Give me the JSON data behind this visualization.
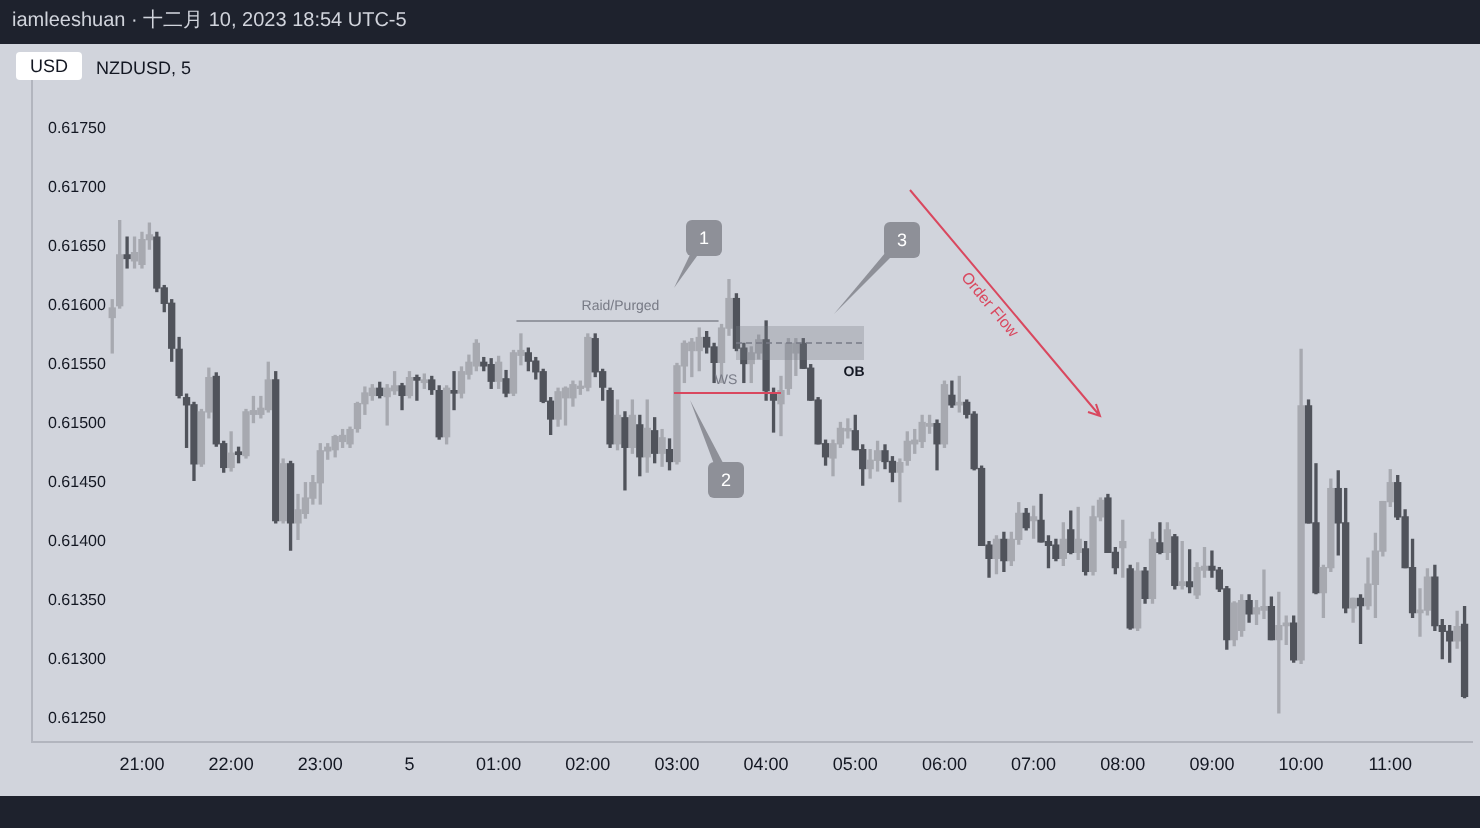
{
  "chart_data": {
    "type": "candlestick",
    "title": "iamleeshuan · 十二月 10, 2023 18:54 UTC-5",
    "subtitle": "NZDUSD, 5",
    "ylabel": "USD",
    "x": [
      "2023-12-04T20:40",
      "2023-12-04T20:45",
      "2023-12-04T20:50",
      "2023-12-04T20:55",
      "2023-12-04T21:00",
      "2023-12-04T21:05",
      "2023-12-04T21:10",
      "2023-12-04T21:15",
      "2023-12-04T21:20",
      "2023-12-04T21:25",
      "2023-12-04T21:30",
      "2023-12-04T21:35",
      "2023-12-04T21:40",
      "2023-12-04T21:45",
      "2023-12-04T21:50",
      "2023-12-04T21:55",
      "2023-12-04T22:00",
      "2023-12-04T22:05",
      "2023-12-04T22:10",
      "2023-12-04T22:15",
      "2023-12-04T22:20",
      "2023-12-04T22:25",
      "2023-12-04T22:30",
      "2023-12-04T22:35",
      "2023-12-04T22:40",
      "2023-12-04T22:45",
      "2023-12-04T22:50",
      "2023-12-04T22:55",
      "2023-12-04T23:00",
      "2023-12-04T23:05",
      "2023-12-04T23:10",
      "2023-12-04T23:15",
      "2023-12-04T23:20",
      "2023-12-04T23:25",
      "2023-12-04T23:30",
      "2023-12-04T23:35",
      "2023-12-04T23:40",
      "2023-12-04T23:45",
      "2023-12-04T23:50",
      "2023-12-04T23:55",
      "2023-12-05T00:00",
      "2023-12-05T00:05",
      "2023-12-05T00:10",
      "2023-12-05T00:15",
      "2023-12-05T00:20",
      "2023-12-05T00:25",
      "2023-12-05T00:30",
      "2023-12-05T00:35",
      "2023-12-05T00:40",
      "2023-12-05T00:45",
      "2023-12-05T00:50",
      "2023-12-05T00:55",
      "2023-12-05T01:00",
      "2023-12-05T01:05",
      "2023-12-05T01:10",
      "2023-12-05T01:15",
      "2023-12-05T01:20",
      "2023-12-05T01:25",
      "2023-12-05T01:30",
      "2023-12-05T01:35",
      "2023-12-05T01:40",
      "2023-12-05T01:45",
      "2023-12-05T01:50",
      "2023-12-05T01:55",
      "2023-12-05T02:00",
      "2023-12-05T02:05",
      "2023-12-05T02:10",
      "2023-12-05T02:15",
      "2023-12-05T02:20",
      "2023-12-05T02:25",
      "2023-12-05T02:30",
      "2023-12-05T02:35",
      "2023-12-05T02:40",
      "2023-12-05T02:45",
      "2023-12-05T02:50",
      "2023-12-05T02:55",
      "2023-12-05T03:00",
      "2023-12-05T03:05",
      "2023-12-05T03:10",
      "2023-12-05T03:15",
      "2023-12-05T03:20",
      "2023-12-05T03:25",
      "2023-12-05T03:30",
      "2023-12-05T03:35",
      "2023-12-05T03:40",
      "2023-12-05T03:45",
      "2023-12-05T03:50",
      "2023-12-05T03:55",
      "2023-12-05T04:00",
      "2023-12-05T04:05",
      "2023-12-05T04:10",
      "2023-12-05T04:15",
      "2023-12-05T04:20",
      "2023-12-05T04:25",
      "2023-12-05T04:30",
      "2023-12-05T04:35",
      "2023-12-05T04:40",
      "2023-12-05T04:45",
      "2023-12-05T04:50",
      "2023-12-05T04:55",
      "2023-12-05T05:00",
      "2023-12-05T05:05",
      "2023-12-05T05:10",
      "2023-12-05T05:15",
      "2023-12-05T05:20",
      "2023-12-05T05:25",
      "2023-12-05T05:30",
      "2023-12-05T05:35",
      "2023-12-05T05:40",
      "2023-12-05T05:45",
      "2023-12-05T05:50",
      "2023-12-05T05:55",
      "2023-12-05T06:00",
      "2023-12-05T06:05",
      "2023-12-05T06:10",
      "2023-12-05T06:15",
      "2023-12-05T06:20",
      "2023-12-05T06:25",
      "2023-12-05T06:30",
      "2023-12-05T06:35",
      "2023-12-05T06:40",
      "2023-12-05T06:45",
      "2023-12-05T06:50",
      "2023-12-05T06:55",
      "2023-12-05T07:00",
      "2023-12-05T07:05",
      "2023-12-05T07:10",
      "2023-12-05T07:15",
      "2023-12-05T07:20",
      "2023-12-05T07:25",
      "2023-12-05T07:30",
      "2023-12-05T07:35",
      "2023-12-05T07:40",
      "2023-12-05T07:45",
      "2023-12-05T07:50",
      "2023-12-05T07:55",
      "2023-12-05T08:00",
      "2023-12-05T08:05",
      "2023-12-05T08:10",
      "2023-12-05T08:15",
      "2023-12-05T08:20",
      "2023-12-05T08:25",
      "2023-12-05T08:30",
      "2023-12-05T08:35",
      "2023-12-05T08:40",
      "2023-12-05T08:45",
      "2023-12-05T08:50",
      "2023-12-05T08:55",
      "2023-12-05T09:00",
      "2023-12-05T09:05",
      "2023-12-05T09:10",
      "2023-12-05T09:15",
      "2023-12-05T09:20",
      "2023-12-05T09:25",
      "2023-12-05T09:30",
      "2023-12-05T09:35",
      "2023-12-05T09:40",
      "2023-12-05T09:45",
      "2023-12-05T09:50",
      "2023-12-05T09:55",
      "2023-12-05T10:00",
      "2023-12-05T10:05",
      "2023-12-05T10:10",
      "2023-12-05T10:15",
      "2023-12-05T10:20",
      "2023-12-05T10:25",
      "2023-12-05T10:30",
      "2023-12-05T10:35",
      "2023-12-05T10:40",
      "2023-12-05T10:45",
      "2023-12-05T10:50",
      "2023-12-05T10:55",
      "2023-12-05T11:00",
      "2023-12-05T11:05",
      "2023-12-05T11:10",
      "2023-12-05T11:15",
      "2023-12-05T11:20",
      "2023-12-05T11:25",
      "2023-12-05T11:30",
      "2023-12-05T11:35",
      "2023-12-05T11:40",
      "2023-12-05T11:45",
      "2023-12-05T11:50"
    ],
    "ohlc": [
      [
        0.6159,
        0.61605,
        0.6156,
        0.61598
      ],
      [
        0.616,
        0.61672,
        0.61598,
        0.61643
      ],
      [
        0.61643,
        0.61658,
        0.61632,
        0.6164
      ],
      [
        0.61638,
        0.61658,
        0.61632,
        0.61645
      ],
      [
        0.61635,
        0.61662,
        0.61632,
        0.61656
      ],
      [
        0.61656,
        0.6167,
        0.61648,
        0.6166
      ],
      [
        0.61658,
        0.61662,
        0.61612,
        0.61615
      ],
      [
        0.61615,
        0.61617,
        0.61595,
        0.61602
      ],
      [
        0.61602,
        0.61605,
        0.61553,
        0.61564
      ],
      [
        0.61563,
        0.61573,
        0.61522,
        0.61524
      ],
      [
        0.61522,
        0.61525,
        0.6148,
        0.61516
      ],
      [
        0.61516,
        0.61518,
        0.61452,
        0.61466
      ],
      [
        0.61466,
        0.61512,
        0.61464,
        0.6151
      ],
      [
        0.6151,
        0.61547,
        0.61505,
        0.61539
      ],
      [
        0.6154,
        0.61543,
        0.61481,
        0.61483
      ],
      [
        0.61483,
        0.61485,
        0.61459,
        0.61463
      ],
      [
        0.61463,
        0.61493,
        0.6146,
        0.61475
      ],
      [
        0.61476,
        0.6148,
        0.61467,
        0.61474
      ],
      [
        0.61473,
        0.61512,
        0.61471,
        0.6151
      ],
      [
        0.61508,
        0.61523,
        0.61501,
        0.61511
      ],
      [
        0.61508,
        0.61523,
        0.61505,
        0.61513
      ],
      [
        0.61512,
        0.61552,
        0.6151,
        0.61537
      ],
      [
        0.61537,
        0.61544,
        0.61416,
        0.61418
      ],
      [
        0.61418,
        0.6147,
        0.61416,
        0.61466
      ],
      [
        0.61466,
        0.61468,
        0.61393,
        0.61416
      ],
      [
        0.61416,
        0.6144,
        0.61402,
        0.61427
      ],
      [
        0.61424,
        0.6145,
        0.6142,
        0.61437
      ],
      [
        0.61437,
        0.61456,
        0.61432,
        0.6145
      ],
      [
        0.6145,
        0.61483,
        0.61432,
        0.61477
      ],
      [
        0.61477,
        0.61483,
        0.6147,
        0.6148
      ],
      [
        0.61478,
        0.6149,
        0.61472,
        0.61489
      ],
      [
        0.61485,
        0.61495,
        0.6148,
        0.6149
      ],
      [
        0.61483,
        0.61497,
        0.6148,
        0.61495
      ],
      [
        0.61496,
        0.61518,
        0.61493,
        0.61517
      ],
      [
        0.61517,
        0.61531,
        0.61508,
        0.61526
      ],
      [
        0.61524,
        0.61533,
        0.6152,
        0.6153
      ],
      [
        0.6153,
        0.61535,
        0.61522,
        0.61524
      ],
      [
        0.61523,
        0.61533,
        0.61499,
        0.6153
      ],
      [
        0.61528,
        0.61544,
        0.61525,
        0.61532
      ],
      [
        0.61532,
        0.61534,
        0.61512,
        0.61524
      ],
      [
        0.61524,
        0.61544,
        0.61522,
        0.61539
      ],
      [
        0.61539,
        0.61541,
        0.6152,
        0.61537
      ],
      [
        0.61535,
        0.61542,
        0.6153,
        0.61537
      ],
      [
        0.61537,
        0.6154,
        0.61525,
        0.61529
      ],
      [
        0.61528,
        0.61532,
        0.61487,
        0.61489
      ],
      [
        0.61489,
        0.61532,
        0.61483,
        0.6153
      ],
      [
        0.61528,
        0.61544,
        0.61512,
        0.61526
      ],
      [
        0.61526,
        0.61548,
        0.61522,
        0.61544
      ],
      [
        0.61542,
        0.61558,
        0.61538,
        0.61552
      ],
      [
        0.61549,
        0.61571,
        0.61545,
        0.61568
      ],
      [
        0.61552,
        0.61556,
        0.61545,
        0.61549
      ],
      [
        0.6155,
        0.61555,
        0.6153,
        0.61536
      ],
      [
        0.61536,
        0.61557,
        0.6153,
        0.61552
      ],
      [
        0.61538,
        0.61545,
        0.61523,
        0.61526
      ],
      [
        0.61526,
        0.61562,
        0.61524,
        0.6156
      ],
      [
        0.61558,
        0.61576,
        0.6155,
        0.61562
      ],
      [
        0.6156,
        0.61564,
        0.61545,
        0.61553
      ],
      [
        0.61553,
        0.61556,
        0.61538,
        0.61544
      ],
      [
        0.61544,
        0.61546,
        0.61518,
        0.61519
      ],
      [
        0.61519,
        0.61522,
        0.61491,
        0.61504
      ],
      [
        0.61504,
        0.6153,
        0.61498,
        0.61527
      ],
      [
        0.61522,
        0.61531,
        0.61499,
        0.6153
      ],
      [
        0.61522,
        0.61536,
        0.61515,
        0.61533
      ],
      [
        0.6153,
        0.61536,
        0.61525,
        0.61531
      ],
      [
        0.61531,
        0.61576,
        0.61528,
        0.61573
      ],
      [
        0.61572,
        0.61576,
        0.6154,
        0.61544
      ],
      [
        0.61544,
        0.61546,
        0.6152,
        0.61531
      ],
      [
        0.61528,
        0.6153,
        0.6148,
        0.61483
      ],
      [
        0.61483,
        0.6152,
        0.61478,
        0.61507
      ],
      [
        0.61505,
        0.6151,
        0.61444,
        0.6148
      ],
      [
        0.6148,
        0.6152,
        0.61475,
        0.61507
      ],
      [
        0.61499,
        0.61507,
        0.61456,
        0.61472
      ],
      [
        0.61472,
        0.6152,
        0.61459,
        0.61496
      ],
      [
        0.61494,
        0.61505,
        0.61467,
        0.61475
      ],
      [
        0.61475,
        0.61495,
        0.61464,
        0.61488
      ],
      [
        0.61478,
        0.61487,
        0.61461,
        0.61468
      ],
      [
        0.61468,
        0.61551,
        0.61466,
        0.61549
      ],
      [
        0.61549,
        0.6157,
        0.61535,
        0.61568
      ],
      [
        0.61562,
        0.61572,
        0.6154,
        0.61569
      ],
      [
        0.61562,
        0.61581,
        0.61545,
        0.61573
      ],
      [
        0.61573,
        0.61578,
        0.6156,
        0.61565
      ],
      [
        0.61565,
        0.61568,
        0.61535,
        0.61552
      ],
      [
        0.61552,
        0.61584,
        0.61535,
        0.61581
      ],
      [
        0.61581,
        0.61622,
        0.61575,
        0.61606
      ],
      [
        0.61606,
        0.6161,
        0.61562,
        0.61564
      ],
      [
        0.61564,
        0.61568,
        0.61535,
        0.61551
      ],
      [
        0.61551,
        0.61565,
        0.61535,
        0.6156
      ],
      [
        0.6156,
        0.61575,
        0.61555,
        0.61571
      ],
      [
        0.61571,
        0.61587,
        0.6152,
        0.61528
      ],
      [
        0.61526,
        0.6153,
        0.61493,
        0.6152
      ],
      [
        0.61517,
        0.6154,
        0.6149,
        0.61528
      ],
      [
        0.6153,
        0.61572,
        0.61525,
        0.61568
      ],
      [
        0.6156,
        0.61572,
        0.61541,
        0.61568
      ],
      [
        0.61568,
        0.61572,
        0.61547,
        0.61547
      ],
      [
        0.61547,
        0.6155,
        0.6152,
        0.6152
      ],
      [
        0.6152,
        0.61522,
        0.61483,
        0.61483
      ],
      [
        0.61483,
        0.61486,
        0.61465,
        0.61472
      ],
      [
        0.61471,
        0.61486,
        0.61456,
        0.61483
      ],
      [
        0.61483,
        0.61501,
        0.6148,
        0.61496
      ],
      [
        0.61494,
        0.61504,
        0.61488,
        0.61495
      ],
      [
        0.61494,
        0.61507,
        0.61478,
        0.61478
      ],
      [
        0.61478,
        0.61482,
        0.61448,
        0.61462
      ],
      [
        0.61462,
        0.61478,
        0.61454,
        0.61469
      ],
      [
        0.61469,
        0.61485,
        0.6146,
        0.61477
      ],
      [
        0.61477,
        0.61482,
        0.61462,
        0.61468
      ],
      [
        0.61468,
        0.61472,
        0.61451,
        0.61459
      ],
      [
        0.61459,
        0.6147,
        0.61434,
        0.61467
      ],
      [
        0.61469,
        0.61493,
        0.61465,
        0.61485
      ],
      [
        0.61483,
        0.61495,
        0.61475,
        0.61486
      ],
      [
        0.61485,
        0.61507,
        0.6148,
        0.61501
      ],
      [
        0.61498,
        0.61507,
        0.61492,
        0.615
      ],
      [
        0.615,
        0.61503,
        0.61461,
        0.61483
      ],
      [
        0.61483,
        0.61536,
        0.6148,
        0.61533
      ],
      [
        0.61524,
        0.61536,
        0.61514,
        0.61516
      ],
      [
        0.61516,
        0.6154,
        0.6151,
        0.61518
      ],
      [
        0.61518,
        0.6152,
        0.61505,
        0.61508
      ],
      [
        0.61508,
        0.6151,
        0.61461,
        0.61462
      ],
      [
        0.61462,
        0.61464,
        0.61397,
        0.61397
      ],
      [
        0.61397,
        0.614,
        0.6137,
        0.61386
      ],
      [
        0.61386,
        0.61405,
        0.61373,
        0.61402
      ],
      [
        0.61402,
        0.61408,
        0.61375,
        0.61384
      ],
      [
        0.61384,
        0.61408,
        0.6138,
        0.61402
      ],
      [
        0.61402,
        0.61433,
        0.61398,
        0.61424
      ],
      [
        0.61424,
        0.61428,
        0.6141,
        0.61412
      ],
      [
        0.61418,
        0.6143,
        0.61403,
        0.61421
      ],
      [
        0.61418,
        0.6144,
        0.614,
        0.614
      ],
      [
        0.614,
        0.61405,
        0.61378,
        0.61397
      ],
      [
        0.61397,
        0.61402,
        0.61384,
        0.61386
      ],
      [
        0.61386,
        0.61416,
        0.6138,
        0.61402
      ],
      [
        0.6141,
        0.61426,
        0.6139,
        0.61391
      ],
      [
        0.61391,
        0.61429,
        0.61385,
        0.61402
      ],
      [
        0.61394,
        0.614,
        0.61372,
        0.61375
      ],
      [
        0.61375,
        0.6143,
        0.61372,
        0.61421
      ],
      [
        0.61421,
        0.61437,
        0.61418,
        0.61435
      ],
      [
        0.61437,
        0.6144,
        0.61391,
        0.61391
      ],
      [
        0.61391,
        0.61395,
        0.61373,
        0.61378
      ],
      [
        0.61395,
        0.61418,
        0.6137,
        0.614
      ],
      [
        0.61377,
        0.6138,
        0.61326,
        0.61327
      ],
      [
        0.61327,
        0.61382,
        0.61325,
        0.61375
      ],
      [
        0.61375,
        0.61378,
        0.61348,
        0.61352
      ],
      [
        0.61352,
        0.61408,
        0.61348,
        0.61402
      ],
      [
        0.61399,
        0.61416,
        0.6139,
        0.61391
      ],
      [
        0.61391,
        0.61416,
        0.61385,
        0.6141
      ],
      [
        0.61404,
        0.61406,
        0.6136,
        0.61363
      ],
      [
        0.61363,
        0.614,
        0.6136,
        0.61366
      ],
      [
        0.61366,
        0.61393,
        0.61357,
        0.61362
      ],
      [
        0.61355,
        0.61382,
        0.61352,
        0.61378
      ],
      [
        0.61376,
        0.61395,
        0.6137,
        0.61379
      ],
      [
        0.61379,
        0.61392,
        0.6137,
        0.61376
      ],
      [
        0.61376,
        0.61378,
        0.61358,
        0.6136
      ],
      [
        0.6136,
        0.61362,
        0.61309,
        0.61317
      ],
      [
        0.61317,
        0.61349,
        0.61312,
        0.61348
      ],
      [
        0.61325,
        0.61355,
        0.6132,
        0.6135
      ],
      [
        0.6135,
        0.61355,
        0.61332,
        0.61339
      ],
      [
        0.61339,
        0.6135,
        0.6133,
        0.61344
      ],
      [
        0.61342,
        0.61376,
        0.61335,
        0.61345
      ],
      [
        0.61345,
        0.61353,
        0.61317,
        0.61317
      ],
      [
        0.61317,
        0.61357,
        0.61255,
        0.61329
      ],
      [
        0.61329,
        0.61337,
        0.61313,
        0.61331
      ],
      [
        0.61331,
        0.61337,
        0.61298,
        0.613
      ],
      [
        0.613,
        0.61563,
        0.61297,
        0.61515
      ],
      [
        0.61515,
        0.6152,
        0.61416,
        0.61416
      ],
      [
        0.61416,
        0.61466,
        0.61356,
        0.61357
      ],
      [
        0.61357,
        0.6138,
        0.61336,
        0.61378
      ],
      [
        0.61378,
        0.61453,
        0.61375,
        0.61445
      ],
      [
        0.61445,
        0.6146,
        0.61389,
        0.61416
      ],
      [
        0.61416,
        0.61445,
        0.6134,
        0.61344
      ],
      [
        0.61344,
        0.61352,
        0.61332,
        0.61352
      ],
      [
        0.61352,
        0.61355,
        0.61314,
        0.61346
      ],
      [
        0.61346,
        0.61386,
        0.61343,
        0.61364
      ],
      [
        0.61364,
        0.61407,
        0.61336,
        0.61392
      ],
      [
        0.61392,
        0.61434,
        0.61388,
        0.61434
      ],
      [
        0.61434,
        0.61461,
        0.6143,
        0.6145
      ],
      [
        0.6145,
        0.61456,
        0.61419,
        0.61421
      ],
      [
        0.61421,
        0.61427,
        0.61378,
        0.61378
      ],
      [
        0.61378,
        0.61402,
        0.61336,
        0.6134
      ],
      [
        0.6134,
        0.6136,
        0.6132,
        0.61342
      ],
      [
        0.61342,
        0.61377,
        0.61338,
        0.6137
      ],
      [
        0.6137,
        0.6138,
        0.61325,
        0.61329
      ],
      [
        0.61329,
        0.61334,
        0.61301,
        0.61324
      ],
      [
        0.61324,
        0.61329,
        0.61298,
        0.61316
      ],
      [
        0.61316,
        0.61341,
        0.6131,
        0.61328
      ],
      [
        0.6133,
        0.61345,
        0.61268,
        0.61269
      ]
    ],
    "series": [
      {
        "type": "line",
        "x": [
          "2023-12-05T01:12",
          "2023-12-05T03:28"
        ],
        "values": [
          0.61587,
          0.61587
        ],
        "color": "#9598a1"
      },
      {
        "type": "line",
        "x": [
          "2023-12-05T02:58",
          "2023-12-05T04:10"
        ],
        "values": [
          0.61526,
          0.61526
        ],
        "color": "#d9485f"
      }
    ],
    "xlim": [
      "2023-12-04T19:46",
      "2023-12-05T11:55"
    ],
    "ylim": [
      0.6123,
      0.618
    ],
    "xticks": [
      {
        "value": "2023-12-04T21:00",
        "label": "21:00"
      },
      {
        "value": "2023-12-04T22:00",
        "label": "22:00"
      },
      {
        "value": "2023-12-04T23:00",
        "label": "23:00"
      },
      {
        "value": "2023-12-05T00:00",
        "label": "5"
      },
      {
        "value": "2023-12-05T01:00",
        "label": "01:00"
      },
      {
        "value": "2023-12-05T02:00",
        "label": "02:00"
      },
      {
        "value": "2023-12-05T03:00",
        "label": "03:00"
      },
      {
        "value": "2023-12-05T04:00",
        "label": "04:00"
      },
      {
        "value": "2023-12-05T05:00",
        "label": "05:00"
      },
      {
        "value": "2023-12-05T06:00",
        "label": "06:00"
      },
      {
        "value": "2023-12-05T07:00",
        "label": "07:00"
      },
      {
        "value": "2023-12-05T08:00",
        "label": "08:00"
      },
      {
        "value": "2023-12-05T09:00",
        "label": "09:00"
      },
      {
        "value": "2023-12-05T10:00",
        "label": "10:00"
      },
      {
        "value": "2023-12-05T11:00",
        "label": "11:00"
      }
    ],
    "yticks": [
      {
        "value": 0.6125,
        "label": "0.61250"
      },
      {
        "value": 0.613,
        "label": "0.61300"
      },
      {
        "value": 0.6135,
        "label": "0.61350"
      },
      {
        "value": 0.614,
        "label": "0.61400"
      },
      {
        "value": 0.6145,
        "label": "0.61450"
      },
      {
        "value": 0.615,
        "label": "0.61500"
      },
      {
        "value": 0.6155,
        "label": "0.61550"
      },
      {
        "value": 0.616,
        "label": "0.61600"
      },
      {
        "value": 0.6165,
        "label": "0.61650"
      },
      {
        "value": 0.617,
        "label": "0.61700"
      },
      {
        "value": 0.6175,
        "label": "0.61750"
      }
    ],
    "annotations": [
      {
        "text": "Raid/Purged",
        "x": "2023-12-05T02:22",
        "y": 0.61587
      },
      {
        "text": "WS",
        "x": "2023-12-05T03:33",
        "y": 0.61526
      },
      "OB",
      "1",
      "2",
      "3",
      "Order Flow"
    ],
    "grid": false,
    "legend": false
  }
}
